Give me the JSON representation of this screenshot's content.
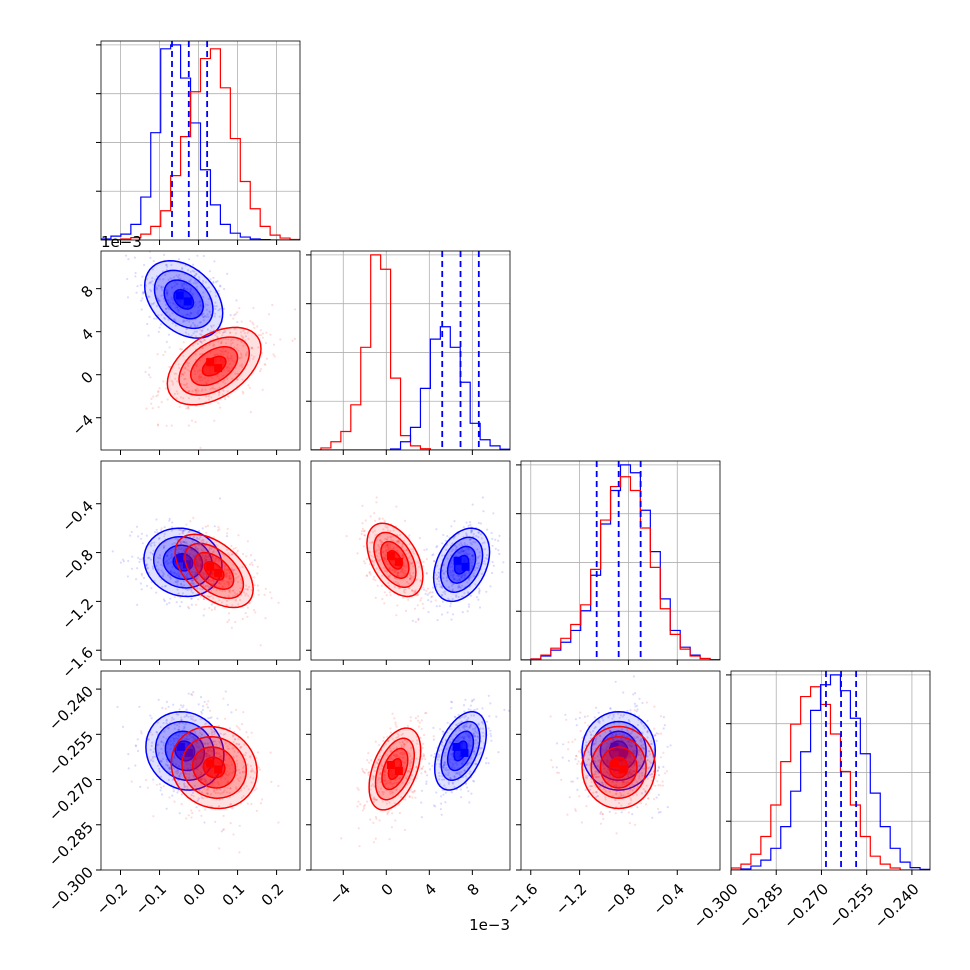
{
  "chart_data": {
    "type": "corner",
    "colors": {
      "blue": "#0000ff",
      "red": "#ff0000"
    },
    "grid": true,
    "parameters": [
      {
        "range": [
          -0.25,
          0.26
        ],
        "ticks": [
          -0.2,
          -0.1,
          0.0,
          0.1,
          0.2
        ],
        "tick_labels": [
          "−0.2",
          "−0.1",
          "0.0",
          "0.1",
          "0.2"
        ],
        "offset_label": ""
      },
      {
        "range": [
          -7.0,
          11.5
        ],
        "ticks": [
          -4,
          0,
          4,
          8
        ],
        "tick_labels": [
          "−4",
          "0",
          "4",
          "8"
        ],
        "offset_label": "1e−3"
      },
      {
        "range": [
          -1.68,
          -0.05
        ],
        "ticks": [
          -1.6,
          -1.2,
          -0.8,
          -0.4
        ],
        "tick_labels": [
          "−1.6",
          "−1.2",
          "−0.8",
          "−0.4"
        ],
        "offset_label": ""
      },
      {
        "range": [
          -0.3,
          -0.234
        ],
        "ticks": [
          -0.3,
          -0.285,
          -0.27,
          -0.255,
          -0.24
        ],
        "tick_labels": [
          "−0.300",
          "−0.285",
          "−0.270",
          "−0.255",
          "−0.240"
        ],
        "offset_label": ""
      }
    ],
    "histograms": [
      {
        "bins": 20,
        "series": [
          {
            "name": "",
            "color": "blue",
            "counts": [
              0.005,
              0.02,
              0.03,
              0.08,
              0.22,
              0.55,
              0.98,
              1.0,
              0.83,
              0.6,
              0.36,
              0.18,
              0.08,
              0.035,
              0.015,
              0.005,
              0.002,
              0,
              0,
              0
            ]
          },
          {
            "name": "",
            "color": "red",
            "counts": [
              0,
              0.002,
              0.005,
              0.012,
              0.03,
              0.07,
              0.15,
              0.33,
              0.53,
              0.76,
              0.93,
              0.98,
              0.78,
              0.52,
              0.3,
              0.16,
              0.07,
              0.025,
              0.01,
              0.003
            ]
          }
        ],
        "quantiles": [
          -0.068,
          -0.025,
          0.022
        ]
      },
      {
        "bins": 20,
        "series": [
          {
            "name": "",
            "color": "red",
            "counts": [
              0,
              0.01,
              0.04,
              0.09,
              0.22,
              0.5,
              0.95,
              0.88,
              0.35,
              0.07,
              0.02,
              0.006,
              0,
              0,
              0,
              0,
              0,
              0,
              0,
              0
            ]
          },
          {
            "name": "",
            "color": "blue",
            "counts": [
              0,
              0,
              0,
              0,
              0,
              0,
              0,
              0,
              0.005,
              0.04,
              0.11,
              0.3,
              0.54,
              0.6,
              0.5,
              0.33,
              0.13,
              0.05,
              0.02,
              0.004
            ]
          }
        ],
        "quantiles": [
          5.2,
          6.9,
          8.6
        ]
      },
      {
        "bins": 20,
        "series": [
          {
            "name": "",
            "color": "blue",
            "counts": [
              0,
              0.005,
              0.02,
              0.05,
              0.09,
              0.15,
              0.25,
              0.43,
              0.69,
              0.86,
              0.99,
              0.95,
              0.76,
              0.55,
              0.31,
              0.15,
              0.065,
              0.025,
              0.008,
              0.002
            ]
          },
          {
            "name": "",
            "color": "red",
            "counts": [
              0,
              0.005,
              0.025,
              0.06,
              0.11,
              0.18,
              0.28,
              0.46,
              0.71,
              0.88,
              0.93,
              0.86,
              0.67,
              0.47,
              0.26,
              0.13,
              0.055,
              0.02,
              0.007,
              0.002
            ]
          }
        ],
        "quantiles": [
          -1.06,
          -0.88,
          -0.7
        ]
      },
      {
        "bins": 20,
        "series": [
          {
            "name": "",
            "color": "red",
            "counts": [
              0.01,
              0.03,
              0.08,
              0.17,
              0.33,
              0.55,
              0.74,
              0.88,
              0.93,
              0.84,
              0.69,
              0.5,
              0.33,
              0.17,
              0.07,
              0.03,
              0.01,
              0,
              0,
              0
            ]
          },
          {
            "name": "",
            "color": "blue",
            "counts": [
              0,
              0.005,
              0.02,
              0.05,
              0.11,
              0.22,
              0.4,
              0.6,
              0.81,
              0.94,
              0.99,
              0.91,
              0.77,
              0.59,
              0.39,
              0.22,
              0.11,
              0.04,
              0.012,
              0.003
            ]
          }
        ],
        "quantiles": [
          -0.2685,
          -0.2635,
          -0.2585
        ]
      }
    ],
    "joint": [
      {
        "row": 1,
        "col": 0,
        "series": [
          {
            "color": "blue",
            "mean": [
              -0.038,
              7.0
            ],
            "std": [
              0.05,
              1.8
            ],
            "corr": -0.35
          },
          {
            "color": "red",
            "mean": [
              0.04,
              0.8
            ],
            "std": [
              0.06,
              1.8
            ],
            "corr": 0.45
          }
        ]
      },
      {
        "row": 2,
        "col": 0,
        "series": [
          {
            "color": "blue",
            "mean": [
              -0.04,
              -0.88
            ],
            "std": [
              0.05,
              0.14
            ],
            "corr": -0.1
          },
          {
            "color": "red",
            "mean": [
              0.04,
              -0.95
            ],
            "std": [
              0.05,
              0.15
            ],
            "corr": -0.5
          }
        ]
      },
      {
        "row": 2,
        "col": 1,
        "series": [
          {
            "color": "red",
            "mean": [
              0.8,
              -0.86
            ],
            "std": [
              1.3,
              0.15
            ],
            "corr": -0.45
          },
          {
            "color": "blue",
            "mean": [
              7.0,
              -0.9
            ],
            "std": [
              1.3,
              0.15
            ],
            "corr": 0.35
          }
        ]
      },
      {
        "row": 3,
        "col": 0,
        "series": [
          {
            "color": "blue",
            "mean": [
              -0.035,
              -0.2605
            ],
            "std": [
              0.05,
              0.0065
            ],
            "corr": -0.1
          },
          {
            "color": "red",
            "mean": [
              0.04,
              -0.266
            ],
            "std": [
              0.055,
              0.0068
            ],
            "corr": -0.1
          }
        ]
      },
      {
        "row": 3,
        "col": 1,
        "series": [
          {
            "color": "red",
            "mean": [
              0.8,
              -0.2665
            ],
            "std": [
              1.2,
              0.0068
            ],
            "corr": 0.45
          },
          {
            "color": "blue",
            "mean": [
              6.9,
              -0.2605
            ],
            "std": [
              1.2,
              0.0065
            ],
            "corr": 0.45
          }
        ]
      },
      {
        "row": 3,
        "col": 2,
        "series": [
          {
            "color": "blue",
            "mean": [
              -0.88,
              -0.2605
            ],
            "std": [
              0.15,
              0.0065
            ],
            "corr": 0.0
          },
          {
            "color": "red",
            "mean": [
              -0.88,
              -0.266
            ],
            "std": [
              0.15,
              0.0068
            ],
            "corr": 0.0
          }
        ]
      }
    ]
  }
}
